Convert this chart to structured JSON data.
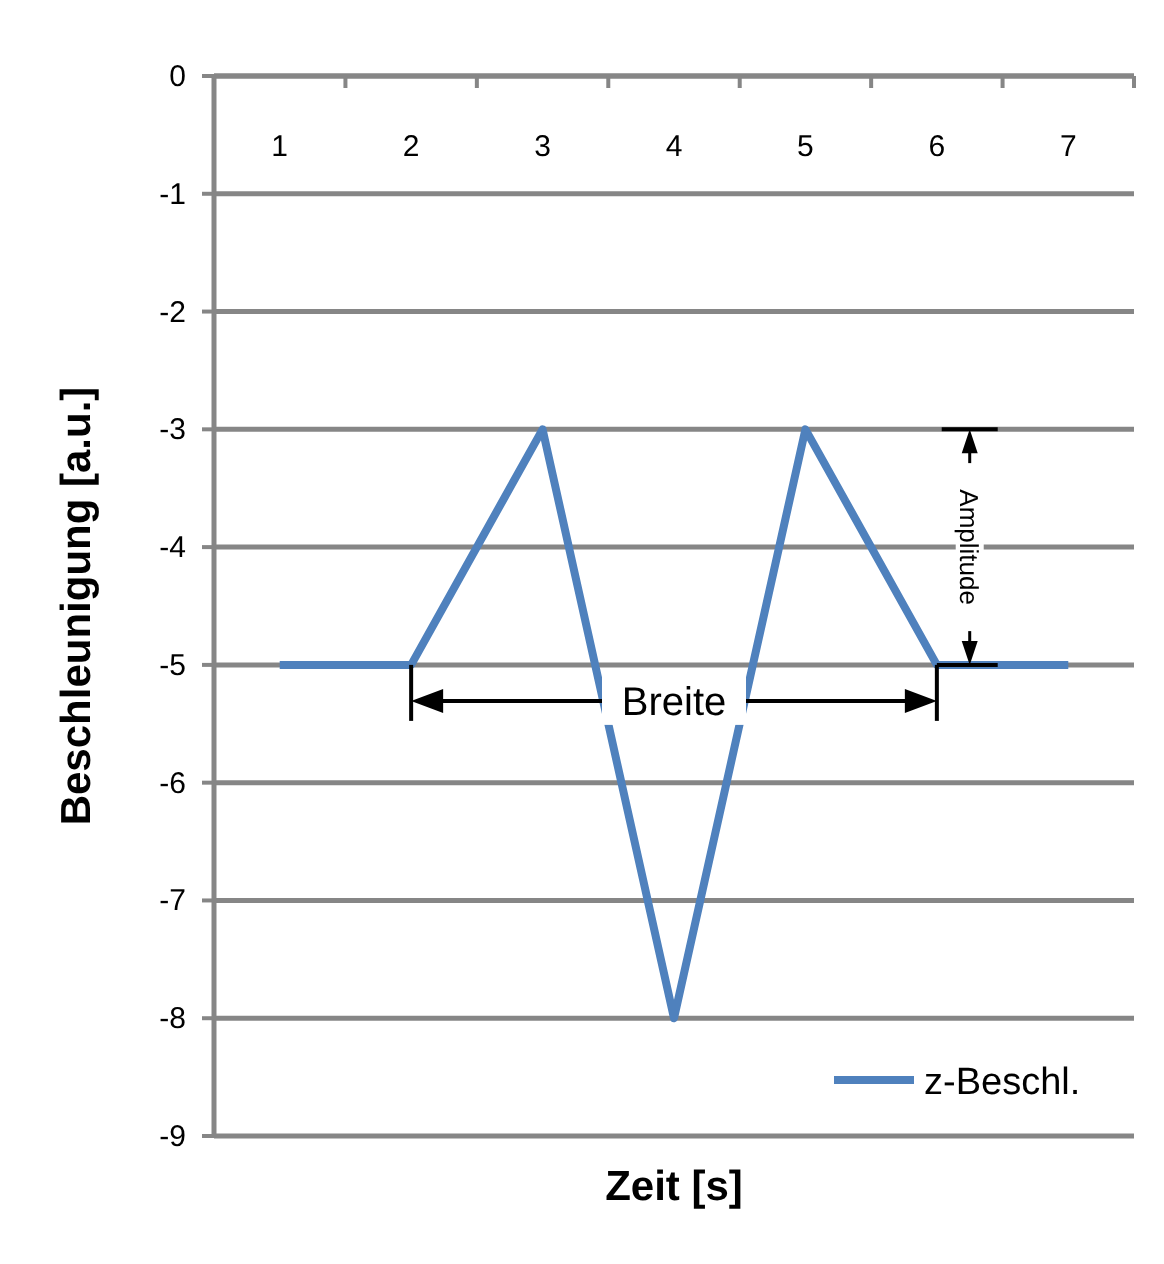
{
  "chart_data": {
    "type": "line",
    "xlabel": "Zeit [s]",
    "ylabel": "Beschleunigung [a.u.]",
    "categories": [
      "1",
      "2",
      "3",
      "4",
      "5",
      "6",
      "7"
    ],
    "series": [
      {
        "name": "z-Beschl.",
        "color": "#4f81bd",
        "values": [
          -5,
          -5,
          -3,
          -8,
          -3,
          -5,
          -5
        ]
      }
    ],
    "ylim": [
      -9,
      0
    ],
    "yticks": [
      0,
      -1,
      -2,
      -3,
      -4,
      -5,
      -6,
      -7,
      -8,
      -9
    ],
    "grid": "y",
    "legend": "bottom right",
    "marker": "none",
    "line_style": "solid",
    "annotations": [
      "Breite",
      "Amplitude"
    ]
  }
}
